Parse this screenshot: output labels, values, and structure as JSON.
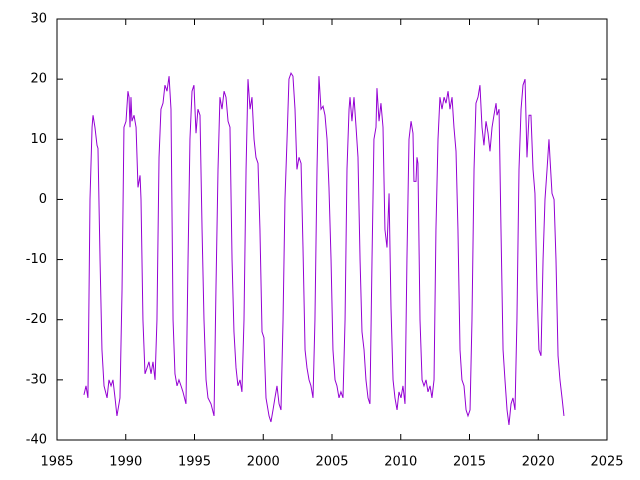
{
  "chart_data": {
    "type": "line",
    "color": "#9400d3",
    "xlim": [
      1985,
      2025
    ],
    "xticks": [
      1985,
      1990,
      1995,
      2000,
      2005,
      2010,
      2015,
      2020,
      2025
    ],
    "ylim": [
      -40,
      30
    ],
    "yticks": [
      -40,
      -30,
      -20,
      -10,
      0,
      10,
      20,
      30
    ],
    "x": [
      1986.96,
      1987.11,
      1987.25,
      1987.4,
      1987.55,
      1987.62,
      1987.76,
      1987.91,
      1987.98,
      1988.13,
      1988.27,
      1988.42,
      1988.64,
      1988.78,
      1988.93,
      1989.07,
      1989.22,
      1989.36,
      1989.58,
      1989.73,
      1989.87,
      1990.02,
      1990.16,
      1990.24,
      1990.31,
      1990.38,
      1990.45,
      1990.6,
      1990.75,
      1990.89,
      1991.04,
      1991.11,
      1991.25,
      1991.4,
      1991.55,
      1991.69,
      1991.84,
      1991.98,
      1992.13,
      1992.27,
      1992.42,
      1992.56,
      1992.71,
      1992.85,
      1993.0,
      1993.15,
      1993.29,
      1993.44,
      1993.58,
      1993.73,
      1993.87,
      1994.02,
      1994.16,
      1994.38,
      1994.53,
      1994.67,
      1994.82,
      1994.96,
      1995.11,
      1995.25,
      1995.4,
      1995.55,
      1995.69,
      1995.84,
      1995.98,
      1996.2,
      1996.42,
      1996.56,
      1996.71,
      1996.85,
      1997.0,
      1997.15,
      1997.29,
      1997.44,
      1997.58,
      1997.73,
      1997.87,
      1998.02,
      1998.16,
      1998.31,
      1998.45,
      1998.6,
      1998.75,
      1998.89,
      1999.04,
      1999.18,
      1999.33,
      1999.47,
      1999.62,
      1999.76,
      1999.91,
      2000.05,
      2000.2,
      2000.42,
      2000.56,
      2000.71,
      2000.85,
      2001.0,
      2001.15,
      2001.29,
      2001.44,
      2001.58,
      2001.73,
      2001.87,
      2002.02,
      2002.16,
      2002.31,
      2002.45,
      2002.6,
      2002.75,
      2002.89,
      2003.04,
      2003.18,
      2003.33,
      2003.47,
      2003.62,
      2003.76,
      2003.91,
      2004.05,
      2004.2,
      2004.35,
      2004.49,
      2004.64,
      2004.78,
      2004.93,
      2005.07,
      2005.22,
      2005.36,
      2005.51,
      2005.65,
      2005.8,
      2005.95,
      2006.09,
      2006.24,
      2006.31,
      2006.45,
      2006.6,
      2006.75,
      2006.89,
      2007.04,
      2007.18,
      2007.33,
      2007.47,
      2007.62,
      2007.76,
      2007.91,
      2008.05,
      2008.2,
      2008.27,
      2008.42,
      2008.56,
      2008.71,
      2008.85,
      2009.0,
      2009.15,
      2009.29,
      2009.44,
      2009.58,
      2009.73,
      2009.87,
      2010.02,
      2010.16,
      2010.31,
      2010.45,
      2010.6,
      2010.75,
      2010.89,
      2010.96,
      2011.11,
      2011.18,
      2011.25,
      2011.4,
      2011.55,
      2011.69,
      2011.84,
      2011.98,
      2012.13,
      2012.27,
      2012.42,
      2012.56,
      2012.71,
      2012.85,
      2013.0,
      2013.15,
      2013.29,
      2013.44,
      2013.58,
      2013.73,
      2013.87,
      2014.02,
      2014.16,
      2014.31,
      2014.45,
      2014.6,
      2014.75,
      2014.89,
      2015.04,
      2015.18,
      2015.33,
      2015.47,
      2015.62,
      2015.76,
      2015.91,
      2016.05,
      2016.2,
      2016.35,
      2016.49,
      2016.64,
      2016.78,
      2016.93,
      2017.0,
      2017.15,
      2017.29,
      2017.44,
      2017.58,
      2017.73,
      2017.87,
      2018.02,
      2018.16,
      2018.31,
      2018.45,
      2018.6,
      2018.75,
      2018.89,
      2019.04,
      2019.18,
      2019.33,
      2019.47,
      2019.62,
      2019.76,
      2019.91,
      2020.05,
      2020.2,
      2020.35,
      2020.49,
      2020.64,
      2020.78,
      2020.85,
      2021.0,
      2021.15,
      2021.29,
      2021.44,
      2021.58,
      2021.73,
      2021.87
    ],
    "values": [
      -32.5,
      -31,
      -33,
      0,
      12,
      14,
      12,
      9,
      8.5,
      -10,
      -25,
      -31,
      -33,
      -30,
      -31,
      -30,
      -33,
      -36,
      -33,
      -15,
      12,
      13,
      18,
      17,
      12,
      17,
      13,
      14,
      12,
      2,
      4,
      0,
      -20,
      -29,
      -28,
      -27,
      -29,
      -27,
      -30,
      -20,
      7,
      15,
      16,
      19,
      18,
      20.5,
      15,
      -20,
      -29,
      -31,
      -30,
      -31,
      -32,
      -34,
      -10,
      10,
      18,
      19,
      11,
      15,
      14,
      -5,
      -20,
      -30,
      -33,
      -34,
      -36,
      -15,
      5,
      17,
      15,
      18,
      17,
      13,
      12,
      -10,
      -22,
      -28,
      -31,
      -30,
      -32,
      -20,
      5,
      20,
      15,
      17,
      10,
      7,
      6,
      -5,
      -22,
      -23,
      -33,
      -36,
      -37,
      -35,
      -33,
      -31,
      -34,
      -35,
      -20,
      0,
      10,
      20,
      21,
      20.5,
      15,
      5,
      7,
      6,
      -8,
      -25,
      -28,
      -30,
      -31,
      -33,
      -20,
      5,
      20.5,
      15,
      15.5,
      14,
      10,
      2,
      -10,
      -25,
      -30,
      -31,
      -33,
      -32,
      -33,
      -20,
      5,
      15,
      17,
      13,
      17,
      12,
      7,
      -10,
      -22,
      -25,
      -30,
      -33,
      -34,
      -10,
      10,
      12,
      18.5,
      13,
      16,
      12,
      -5,
      -8,
      1,
      -18,
      -30,
      -33,
      -35,
      -32,
      -33,
      -31,
      -34,
      -10,
      10,
      13,
      11,
      3,
      3,
      7,
      6,
      -20,
      -30,
      -31,
      -30,
      -32,
      -31,
      -33,
      -30,
      -5,
      10,
      17,
      15,
      17,
      16,
      18,
      15,
      17,
      12,
      8,
      -5,
      -25,
      -30,
      -31,
      -35,
      -36,
      -35,
      -20,
      5,
      16,
      17,
      19,
      12,
      9,
      13,
      11,
      8,
      12,
      14,
      16,
      14,
      15,
      -5,
      -25,
      -30,
      -35,
      -37.5,
      -34,
      -33,
      -35,
      -20,
      5,
      15,
      19,
      20,
      7,
      14,
      14,
      5,
      1,
      -15,
      -25,
      -26,
      -10,
      0,
      5,
      10,
      7,
      1,
      0,
      -10,
      -26,
      -30,
      -33,
      -36
    ]
  }
}
